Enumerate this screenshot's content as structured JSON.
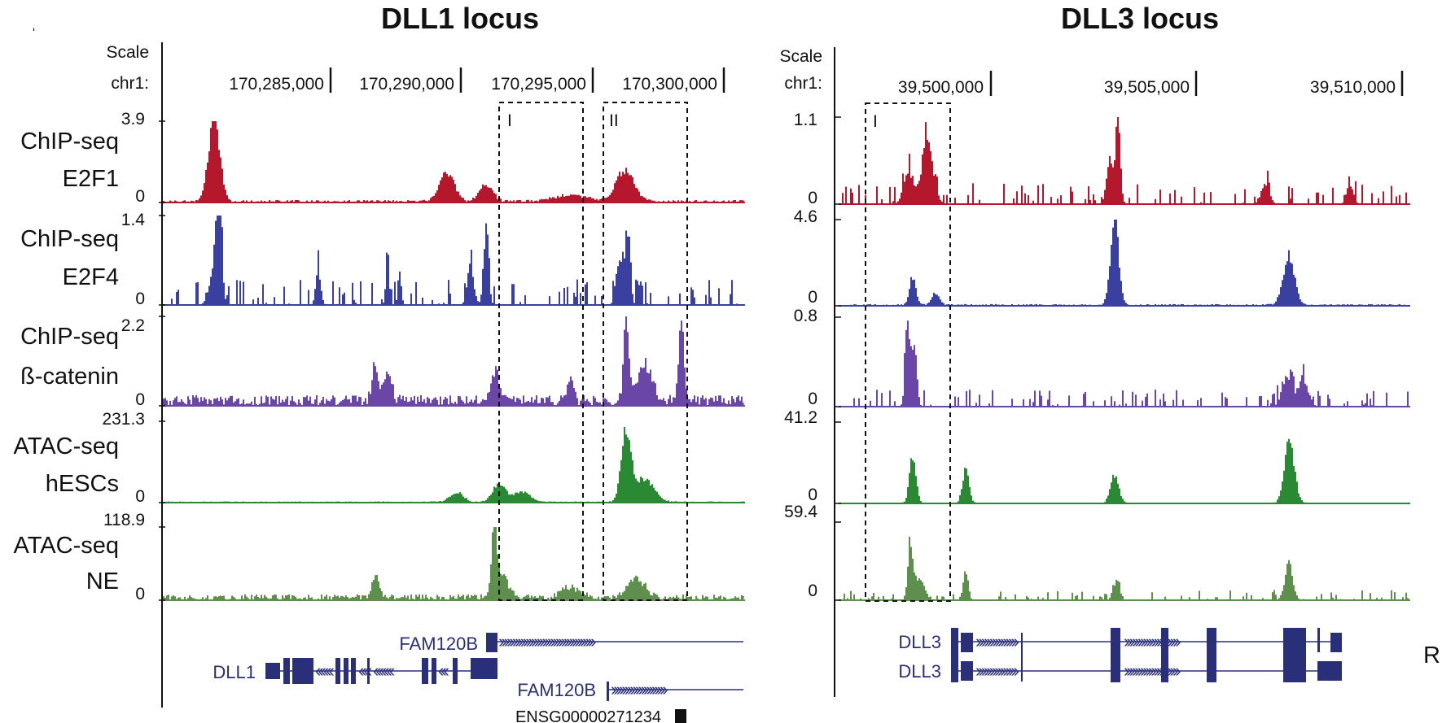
{
  "chart_data": [
    {
      "type": "area",
      "title": "DLL1 locus",
      "scale_label": "Scale",
      "chrom_label": "chr1:",
      "coordinates": [
        "170,285,000",
        "170,290,000",
        "170,295,000",
        "170,300,000"
      ],
      "regions": [
        "I",
        "II"
      ],
      "tracks": [
        {
          "name_line1": "ChIP-seq",
          "name_line2": "E2F1",
          "max": "3.9",
          "min": "0",
          "color": "#b5172c"
        },
        {
          "name_line1": "ChIP-seq",
          "name_line2": "E2F4",
          "max": "1.4",
          "min": "0",
          "color": "#3a40a0"
        },
        {
          "name_line1": "ChIP-seq",
          "name_line2": "ß-catenin",
          "max": "2.2",
          "min": "0",
          "color": "#6a47a6"
        },
        {
          "name_line1": "ATAC-seq",
          "name_line2": "hESCs",
          "max": "231.3",
          "min": "0",
          "color": "#2a8a34"
        },
        {
          "name_line1": "ATAC-seq",
          "name_line2": "NE",
          "max": "118.9",
          "min": "0",
          "color": "#5f8f4c"
        }
      ],
      "genes": [
        "FAM120B",
        "DLL1",
        "FAM120B",
        "ENSG00000271234"
      ]
    },
    {
      "type": "area",
      "title": "DLL3 locus",
      "scale_label": "Scale",
      "chrom_label": "chr1:",
      "coordinates": [
        "39,500,000",
        "39,505,000",
        "39,510,000"
      ],
      "regions": [
        "I"
      ],
      "tracks": [
        {
          "max": "1.1",
          "min": "0",
          "color": "#b5172c"
        },
        {
          "max": "4.6",
          "min": "0",
          "color": "#3a40a0"
        },
        {
          "max": "0.8",
          "min": "0",
          "color": "#6a47a6"
        },
        {
          "max": "41.2",
          "min": "0",
          "color": "#2a8a34"
        },
        {
          "max": "59.4",
          "min": "0",
          "color": "#5f8f4c"
        }
      ],
      "genes": [
        "DLL3",
        "DLL3"
      ],
      "edge_label": "RI"
    }
  ]
}
